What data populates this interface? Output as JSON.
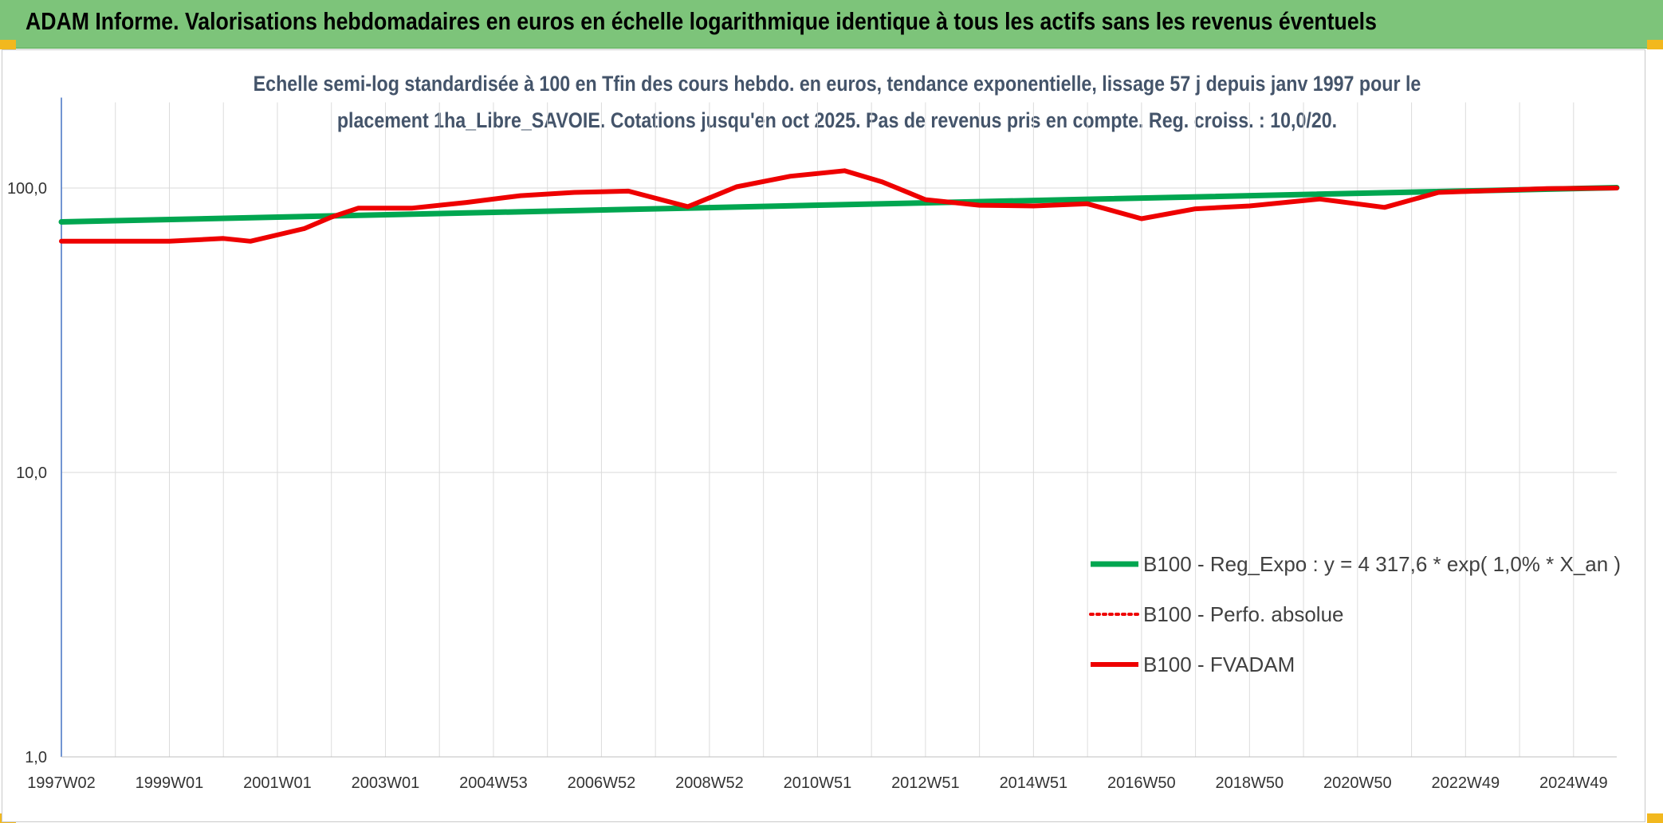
{
  "header": {
    "title": "ADAM Informe. Valorisations hebdomadaires en euros en échelle logarithmique identique à tous les actifs sans les revenus éventuels"
  },
  "colors": {
    "banner": "#7dc47a",
    "regression": "#00a650",
    "fvadam": "#ee0000",
    "perfo": "#ee0000",
    "accent": "#f2b81e"
  },
  "chart_data": {
    "type": "line",
    "title_line1": "Echelle semi-log standardisée à 100 en Tfin des cours hebdo. en euros, tendance exponentielle, lissage 57 j depuis janv 1997 pour le",
    "title_line2": "placement 1ha_Libre_SAVOIE. Cotations jusqu'en oct 2025. Pas de revenus pris en compte. Reg. croiss. : 10,0/20.",
    "y_scale": "log",
    "ylim": [
      1,
      200
    ],
    "y_ticks": [
      {
        "value": 1,
        "label": "1,0"
      },
      {
        "value": 10,
        "label": "10,0"
      },
      {
        "value": 100,
        "label": "100,0"
      }
    ],
    "xlim": [
      1997.0,
      2025.8
    ],
    "x_ticks": [
      {
        "pos": 1997.0,
        "label": "1997W02"
      },
      {
        "pos": 1999.0,
        "label": "1999W01"
      },
      {
        "pos": 2001.0,
        "label": "2001W01"
      },
      {
        "pos": 2003.0,
        "label": "2003W01"
      },
      {
        "pos": 2005.0,
        "label": "2004W53"
      },
      {
        "pos": 2007.0,
        "label": "2006W52"
      },
      {
        "pos": 2009.0,
        "label": "2008W52"
      },
      {
        "pos": 2011.0,
        "label": "2010W51"
      },
      {
        "pos": 2013.0,
        "label": "2012W51"
      },
      {
        "pos": 2015.0,
        "label": "2014W51"
      },
      {
        "pos": 2017.0,
        "label": "2016W50"
      },
      {
        "pos": 2019.0,
        "label": "2018W50"
      },
      {
        "pos": 2021.0,
        "label": "2020W50"
      },
      {
        "pos": 2023.0,
        "label": "2022W49"
      },
      {
        "pos": 2025.0,
        "label": "2024W49"
      }
    ],
    "grid": true,
    "legend_position": "right",
    "series": [
      {
        "name": "B100 - Reg_Expo : y = 4 317,6 * exp( 1,0% *  X_an )",
        "style": "solid-green",
        "x": [
          1997.0,
          2025.8
        ],
        "y": [
          76.0,
          100.3
        ]
      },
      {
        "name": "B100 - Perfo. absolue",
        "style": "dotted-red",
        "x": [],
        "y": []
      },
      {
        "name": "B100 - FVADAM",
        "style": "solid-red",
        "x": [
          1997.0,
          1998.0,
          1999.0,
          2000.0,
          2000.5,
          2001.5,
          2002.0,
          2002.5,
          2003.5,
          2004.5,
          2005.5,
          2006.5,
          2007.5,
          2008.6,
          2009.5,
          2010.5,
          2011.5,
          2012.2,
          2013.0,
          2014.0,
          2015.0,
          2016.0,
          2017.0,
          2018.0,
          2019.0,
          2020.3,
          2021.5,
          2022.5,
          2023.5,
          2024.5,
          2025.8
        ],
        "y": [
          65.0,
          65.0,
          65.0,
          66.5,
          65.0,
          72.0,
          79.0,
          85.0,
          85.0,
          89.0,
          94.0,
          96.5,
          97.5,
          86.0,
          101.0,
          110.0,
          115.0,
          105.0,
          91.0,
          87.0,
          86.5,
          88.0,
          78.0,
          84.5,
          86.5,
          91.5,
          85.5,
          96.5,
          98.0,
          99.5,
          100.0
        ]
      }
    ]
  }
}
